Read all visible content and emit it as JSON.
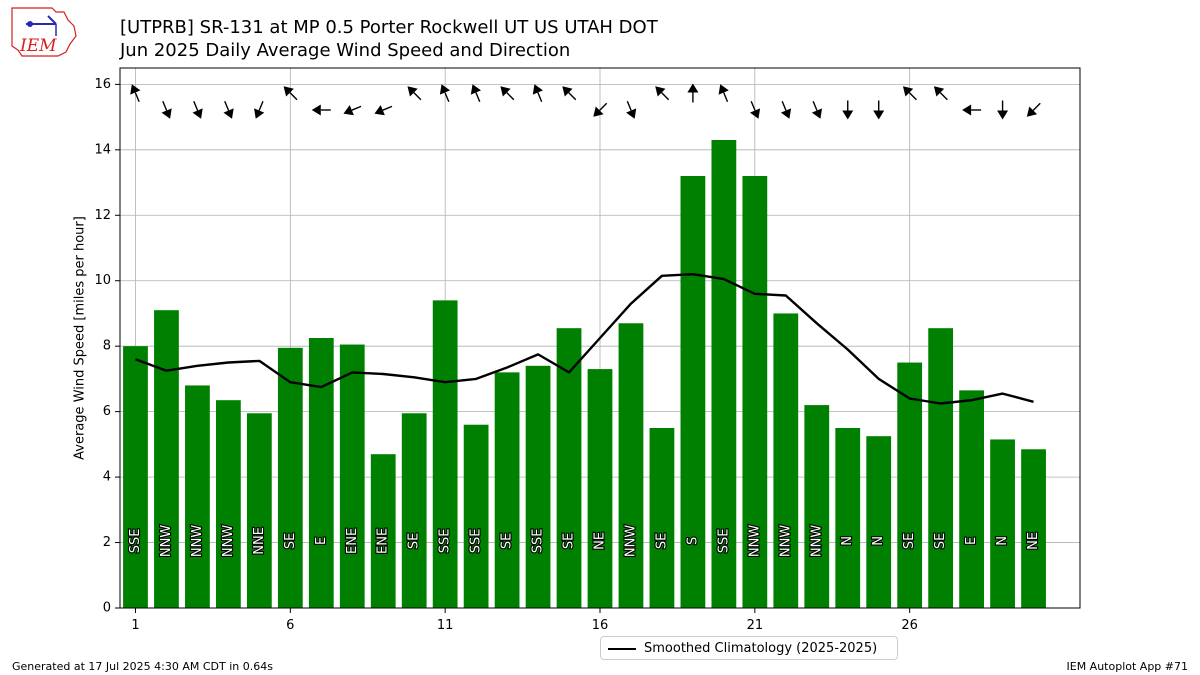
{
  "logo_text": "IEM",
  "title_line1": "[UTPRB] SR-131 at MP 0.5 Porter Rockwell UT US UTAH DOT",
  "title_line2": "Jun 2025 Daily Average Wind Speed and Direction",
  "footer_left": "Generated at 17 Jul 2025 4:30 AM CDT in 0.64s",
  "footer_right": "IEM Autoplot App #71",
  "colors": {
    "bar": "#008000",
    "line": "#000000",
    "grid": "#b0b0b0",
    "logo": "#d42020"
  },
  "chart_data": {
    "type": "bar",
    "title": "[UTPRB] SR-131 at MP 0.5 Porter Rockwell UT US UTAH DOT\nJun 2025 Daily Average Wind Speed and Direction",
    "ylabel": "Average Wind Speed [miles per hour]",
    "xlabel": "",
    "xlim": [
      0.5,
      31.5
    ],
    "ylim": [
      0,
      16.5
    ],
    "xticks": [
      1,
      6,
      11,
      16,
      21,
      26
    ],
    "yticks": [
      0,
      2,
      4,
      6,
      8,
      10,
      12,
      14,
      16
    ],
    "grid": true,
    "legend_position": "bottom-center",
    "days": [
      1,
      2,
      3,
      4,
      5,
      6,
      7,
      8,
      9,
      10,
      11,
      12,
      13,
      14,
      15,
      16,
      17,
      18,
      19,
      20,
      21,
      22,
      23,
      24,
      25,
      26,
      27,
      28,
      29,
      30
    ],
    "series": [
      {
        "kind": "bar",
        "values": [
          8.0,
          9.1,
          6.8,
          6.35,
          5.95,
          7.95,
          8.25,
          8.05,
          4.7,
          5.95,
          9.4,
          5.6,
          7.2,
          7.4,
          8.55,
          7.3,
          8.7,
          5.5,
          13.2,
          14.3,
          13.2,
          9.0,
          6.2,
          5.5,
          5.25,
          7.5,
          8.55,
          6.65,
          5.15,
          4.85
        ]
      },
      {
        "kind": "line",
        "name": "Smoothed Climatology (2025-2025)",
        "values": [
          7.6,
          7.25,
          7.4,
          7.5,
          7.55,
          6.9,
          6.75,
          7.2,
          7.15,
          7.05,
          6.9,
          7.0,
          7.35,
          7.75,
          7.2,
          8.25,
          9.3,
          10.15,
          10.2,
          10.05,
          9.6,
          9.55,
          8.7,
          7.9,
          7.0,
          6.4,
          6.25,
          6.35,
          6.55,
          6.3
        ]
      }
    ],
    "direction_labels": [
      "SSE",
      "NNW",
      "NNW",
      "NNW",
      "NNE",
      "SE",
      "E",
      "ENE",
      "ENE",
      "SE",
      "SSE",
      "SSE",
      "SE",
      "SSE",
      "SE",
      "NE",
      "NNW",
      "SE",
      "S",
      "SSE",
      "NNW",
      "NNW",
      "NNW",
      "N",
      "N",
      "SE",
      "SE",
      "E",
      "N",
      "NE"
    ],
    "direction_degrees": [
      157.5,
      337.5,
      337.5,
      337.5,
      22.5,
      135,
      90,
      67.5,
      67.5,
      135,
      157.5,
      157.5,
      135,
      157.5,
      135,
      45,
      337.5,
      135,
      180,
      157.5,
      337.5,
      337.5,
      337.5,
      0,
      0,
      135,
      135,
      90,
      0,
      45
    ]
  }
}
